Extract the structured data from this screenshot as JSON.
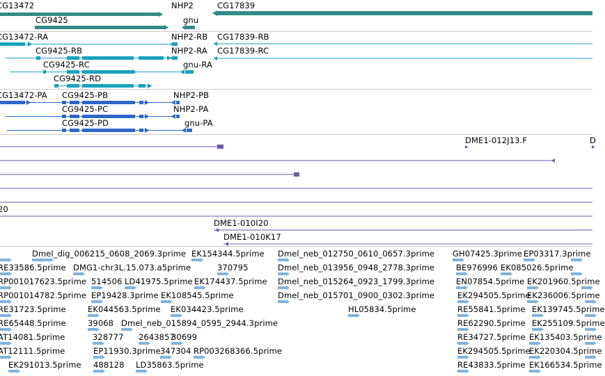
{
  "colors": {
    "gene": "#338a8a",
    "mrna": "#17a2bc",
    "protein": "#2e67c8",
    "clone": "#6a5aa8",
    "est": "#7fb4dc",
    "divider": "#c8c8c8"
  },
  "icons": [
    "arrow-right-icon",
    "arrow-left-icon"
  ],
  "tracks": {
    "gene": {
      "labels": [
        "CG13472",
        "NHP2",
        "CG17839",
        "CG9425",
        "gnu"
      ]
    },
    "mrna": {
      "labels": [
        "CG13472-RA",
        "NHP2-RB",
        "CG17839-RB",
        "CG9425-RB",
        "NHP2-RA",
        "CG17839-RC",
        "CG9425-RC",
        "gnu-RA",
        "CG9425-RD"
      ]
    },
    "protein": {
      "labels": [
        "CG13472-PA",
        "CG9425-PB",
        "NHP2-PB",
        "CG9425-PC",
        "NHP2-PA",
        "CG9425-PD",
        "gnu-PA"
      ]
    },
    "clone": {
      "labels": [
        "DME1-012J13.F",
        "D",
        "20",
        "DME1-010I20",
        "DME1-010K17"
      ]
    },
    "est": {
      "labels": [
        "Dmel_dig_006215_0608_2069.3prime",
        "EK154344.5prime",
        "Dmel_neb_012750_0610_0657.3prime",
        "GH07425.3prime",
        "EP03317.3prime",
        "RE33586.5prime",
        "DMG1-chr3L.15.073.a5prime",
        "370795",
        "Dmel_neb_013956_0948_2778.3prime",
        "BE976996",
        "EK085026.5prime",
        "RP001017623.5prime",
        "514506",
        "LD41975.5prime",
        "EK174437.5prime",
        "Dmel_neb_015264_0923_1799.3prime",
        "EN07854.5prime",
        "EK201960.5prime",
        "RP001014782.5prime",
        "EP19428.3prime",
        "EK108545.5prime",
        "Dmel_neb_015701_0900_0302.3prime",
        "EK294505.5prime",
        "EK236006.5prime",
        "RE31723.5prime",
        "EK044563.5prime",
        "EK034423.5prime",
        "RE55841.5prime",
        "EK139745.5prime",
        "RE65448.5prime",
        "39068",
        "Dmel_neb_015894_0595_2944.3prime",
        "HL05834.5prime",
        "RE62290.5prime",
        "EK255109.5prime",
        "AT14081.5prime",
        "328777",
        "2643857",
        "30699",
        "RE34727.5prime",
        "EK135403.5prime",
        "AT12111.5prime",
        "EP11930.3prime",
        "347304",
        "RP003268366.5prime",
        "EK294505.5prime",
        "EK220304.5prime",
        "EK291013.5prime",
        "488128",
        "LD35863.5prime",
        "RE43833.5prime",
        "EK166534.5prime"
      ]
    }
  }
}
